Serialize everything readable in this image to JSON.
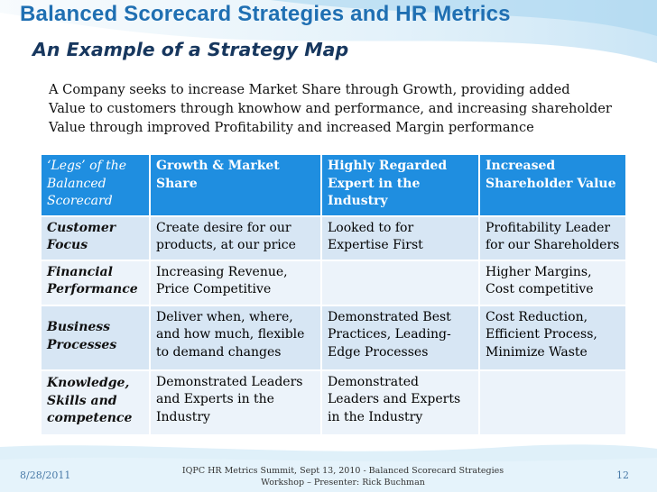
{
  "slide": {
    "title": "Balanced Scorecard Strategies and HR Metrics",
    "subtitle": "An Example of a Strategy Map",
    "intro_lines": [
      "A Company seeks to increase Market Share through Growth, providing added",
      "Value to customers through knowhow and performance, and increasing shareholder",
      "Value through improved Profitability and increased Margin performance"
    ]
  },
  "table": {
    "headers": [
      "‘Legs’ of the Balanced Scorecard",
      "Growth & Market Share",
      "Highly Regarded Expert in the Industry",
      "Increased Shareholder Value"
    ],
    "rows": [
      [
        "Customer Focus",
        "Create desire for our products, at our price",
        "Looked to for Expertise First",
        "Profitability  Leader for our Shareholders"
      ],
      [
        "Financial Performance",
        "Increasing Revenue, Price Competitive",
        "",
        "Higher Margins, Cost competitive"
      ],
      [
        "Business Processes",
        "Deliver when, where, and how much, flexible to demand changes",
        "Demonstrated Best Practices, Leading-Edge Processes",
        "Cost Reduction, Efficient Process, Minimize Waste"
      ],
      [
        "Knowledge, Skills and competence",
        "Demonstrated Leaders and Experts in the Industry",
        "Demonstrated Leaders and Experts in the Industry",
        ""
      ]
    ]
  },
  "footer": {
    "date": "8/28/2011",
    "center_line1": "IQPC HR Metrics Summit, Sept 13, 2010  -  Balanced Scorecard Strategies",
    "center_line2": "Workshop – Presenter: Rick Buchman",
    "page": "12"
  },
  "colors": {
    "title": "#1f6fb2",
    "subtitle": "#17375e",
    "header_bg": "#1f8ee0",
    "row_dark": "#d7e6f4",
    "row_light": "#ecf3fa"
  }
}
